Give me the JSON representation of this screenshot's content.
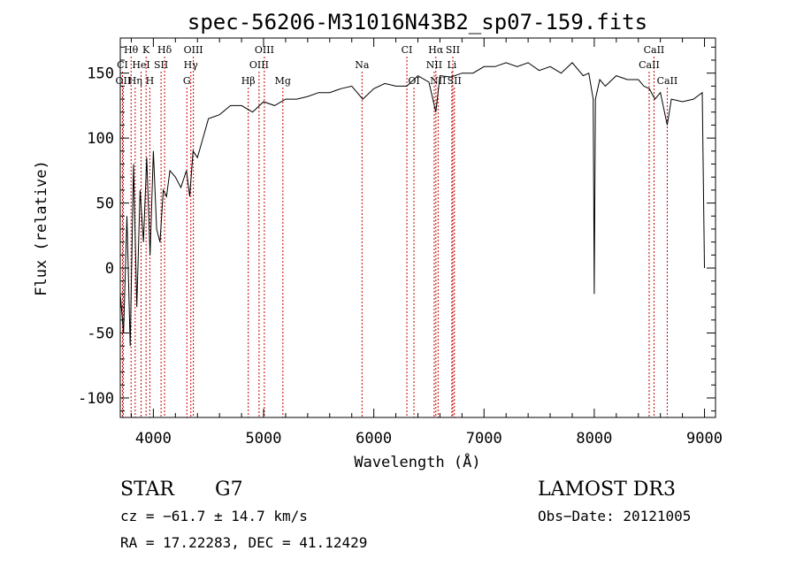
{
  "chart_data": {
    "type": "line",
    "title": "spec-56206-M31016N43B2_sp07-159.fits",
    "xlabel": "Wavelength (Å)",
    "ylabel": "Flux (relative)",
    "xlim": [
      3700,
      9100
    ],
    "ylim": [
      -115,
      177
    ],
    "xticks": [
      4000,
      5000,
      6000,
      7000,
      8000,
      9000
    ],
    "yticks": [
      -100,
      -50,
      0,
      50,
      100,
      150
    ],
    "series": [
      {
        "name": "spectrum",
        "x": [
          3700,
          3730,
          3760,
          3790,
          3820,
          3850,
          3880,
          3910,
          3940,
          3970,
          4000,
          4030,
          4060,
          4090,
          4120,
          4150,
          4200,
          4250,
          4300,
          4330,
          4360,
          4400,
          4450,
          4500,
          4600,
          4700,
          4800,
          4900,
          5000,
          5100,
          5200,
          5300,
          5400,
          5500,
          5600,
          5700,
          5800,
          5900,
          6000,
          6100,
          6200,
          6300,
          6400,
          6500,
          6563,
          6600,
          6700,
          6800,
          6900,
          7000,
          7100,
          7200,
          7300,
          7400,
          7500,
          7600,
          7700,
          7800,
          7900,
          7950,
          7990,
          8000,
          8010,
          8050,
          8100,
          8200,
          8300,
          8400,
          8450,
          8500,
          8550,
          8600,
          8662,
          8700,
          8800,
          8900,
          8980,
          9000
        ],
        "y": [
          -20,
          -50,
          40,
          -60,
          80,
          -30,
          60,
          20,
          85,
          10,
          90,
          30,
          20,
          60,
          55,
          75,
          70,
          62,
          75,
          55,
          90,
          85,
          100,
          115,
          118,
          125,
          125,
          120,
          128,
          125,
          130,
          130,
          132,
          135,
          135,
          138,
          140,
          130,
          138,
          142,
          140,
          140,
          148,
          143,
          120,
          148,
          147,
          150,
          150,
          155,
          155,
          158,
          155,
          158,
          152,
          155,
          150,
          158,
          148,
          150,
          130,
          -20,
          130,
          145,
          140,
          148,
          145,
          145,
          140,
          138,
          130,
          135,
          110,
          130,
          128,
          130,
          135,
          0
        ]
      }
    ],
    "spectral_lines": [
      {
        "label": "Hθ",
        "wl": 3798,
        "row": 1
      },
      {
        "label": "K",
        "wl": 3934,
        "row": 1
      },
      {
        "label": "Hδ",
        "wl": 4102,
        "row": 1
      },
      {
        "label": "OIII",
        "wl": 4363,
        "row": 1
      },
      {
        "label": "OIII",
        "wl": 5007,
        "row": 1
      },
      {
        "label": "CI",
        "wl": 6300,
        "row": 1
      },
      {
        "label": "Hα",
        "wl": 6563,
        "row": 1
      },
      {
        "label": "SII",
        "wl": 6717,
        "row": 1
      },
      {
        "label": "CaII",
        "wl": 8542,
        "row": 1
      },
      {
        "label": "CI",
        "wl": 3720,
        "row": 2
      },
      {
        "label": "HeI",
        "wl": 3889,
        "row": 2
      },
      {
        "label": "SII",
        "wl": 4070,
        "row": 2
      },
      {
        "label": "Hγ",
        "wl": 4340,
        "row": 2
      },
      {
        "label": "OIII",
        "wl": 4959,
        "row": 2
      },
      {
        "label": "Na",
        "wl": 5893,
        "row": 2
      },
      {
        "label": "NII",
        "wl": 6548,
        "row": 2
      },
      {
        "label": "Li",
        "wl": 6708,
        "row": 2
      },
      {
        "label": "CaII",
        "wl": 8498,
        "row": 2
      },
      {
        "label": "OII",
        "wl": 3727,
        "row": 3
      },
      {
        "label": "Hη",
        "wl": 3835,
        "row": 3
      },
      {
        "label": "H",
        "wl": 3968,
        "row": 3
      },
      {
        "label": "G",
        "wl": 4304,
        "row": 3
      },
      {
        "label": "Hβ",
        "wl": 4861,
        "row": 3
      },
      {
        "label": "Mg",
        "wl": 5175,
        "row": 3
      },
      {
        "label": "OI",
        "wl": 6364,
        "row": 3
      },
      {
        "label": "NII",
        "wl": 6583,
        "row": 3
      },
      {
        "label": "SII",
        "wl": 6731,
        "row": 3
      },
      {
        "label": "CaII",
        "wl": 8662,
        "row": 3
      }
    ]
  },
  "footer": {
    "object_class": "STAR",
    "subclass": "G7",
    "survey": "LAMOST DR3",
    "redshift": "cz = −61.7 ± 14.7 km/s",
    "obs_date": "Obs−Date: 20121005",
    "coordinates": "RA =  17.22283, DEC =  41.12429"
  }
}
